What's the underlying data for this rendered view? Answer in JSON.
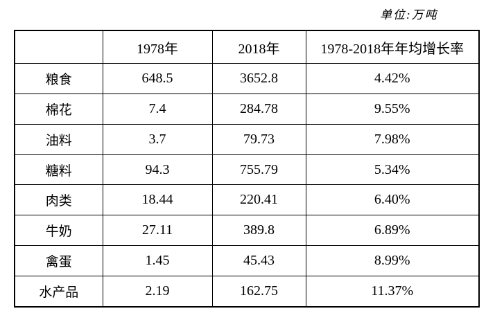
{
  "unit_label": "单位:万吨",
  "table": {
    "col_headers": [
      "1978年",
      "2018年",
      "1978-2018年年均增长率"
    ],
    "rows": [
      {
        "category": "粮食",
        "v1978": "648.5",
        "v2018": "3652.8",
        "growth": "4.42%"
      },
      {
        "category": "棉花",
        "v1978": "7.4",
        "v2018": "284.78",
        "growth": "9.55%"
      },
      {
        "category": "油料",
        "v1978": "3.7",
        "v2018": "79.73",
        "growth": "7.98%"
      },
      {
        "category": "糖料",
        "v1978": "94.3",
        "v2018": "755.79",
        "growth": "5.34%"
      },
      {
        "category": "肉类",
        "v1978": "18.44",
        "v2018": "220.41",
        "growth": "6.40%"
      },
      {
        "category": "牛奶",
        "v1978": "27.11",
        "v2018": "389.8",
        "growth": "6.89%"
      },
      {
        "category": "禽蛋",
        "v1978": "1.45",
        "v2018": "45.43",
        "growth": "8.99%"
      },
      {
        "category": "水产品",
        "v1978": "2.19",
        "v2018": "162.75",
        "growth": "11.37%"
      }
    ]
  },
  "chart_data": {
    "type": "table",
    "title": "",
    "unit": "万吨",
    "columns": [
      "",
      "1978年",
      "2018年",
      "1978-2018年年均增长率"
    ],
    "categories": [
      "粮食",
      "棉花",
      "油料",
      "糖料",
      "肉类",
      "牛奶",
      "禽蛋",
      "水产品"
    ],
    "series": [
      {
        "name": "1978年",
        "values": [
          648.5,
          7.4,
          3.7,
          94.3,
          18.44,
          27.11,
          1.45,
          2.19
        ]
      },
      {
        "name": "2018年",
        "values": [
          3652.8,
          284.78,
          79.73,
          755.79,
          220.41,
          389.8,
          45.43,
          162.75
        ]
      },
      {
        "name": "1978-2018年年均增长率",
        "values": [
          "4.42%",
          "9.55%",
          "7.98%",
          "5.34%",
          "6.40%",
          "6.89%",
          "8.99%",
          "11.37%"
        ]
      }
    ]
  }
}
